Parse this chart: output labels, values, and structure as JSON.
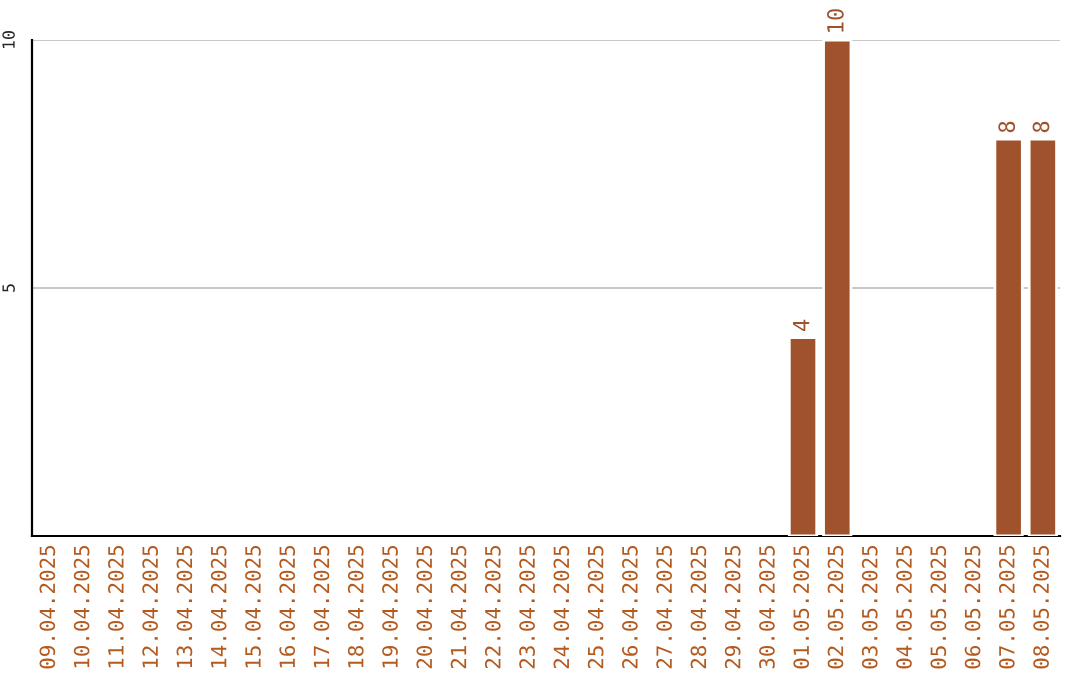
{
  "chart_data": {
    "type": "bar",
    "categories": [
      "09.04.2025",
      "10.04.2025",
      "11.04.2025",
      "12.04.2025",
      "13.04.2025",
      "14.04.2025",
      "15.04.2025",
      "16.04.2025",
      "17.04.2025",
      "18.04.2025",
      "19.04.2025",
      "20.04.2025",
      "21.04.2025",
      "22.04.2025",
      "23.04.2025",
      "24.04.2025",
      "25.04.2025",
      "26.04.2025",
      "27.04.2025",
      "28.04.2025",
      "29.04.2025",
      "30.04.2025",
      "01.05.2025",
      "02.05.2025",
      "03.05.2025",
      "04.05.2025",
      "05.05.2025",
      "06.05.2025",
      "07.05.2025",
      "08.05.2025"
    ],
    "values": [
      null,
      null,
      null,
      null,
      null,
      null,
      null,
      null,
      null,
      null,
      null,
      null,
      null,
      null,
      null,
      null,
      null,
      null,
      null,
      null,
      null,
      null,
      4,
      10,
      null,
      null,
      null,
      null,
      8,
      8
    ],
    "color": "#a0522d",
    "ylim": [
      0,
      10
    ],
    "yticks": [
      5,
      10
    ],
    "grid": "y",
    "data_labels": true
  }
}
